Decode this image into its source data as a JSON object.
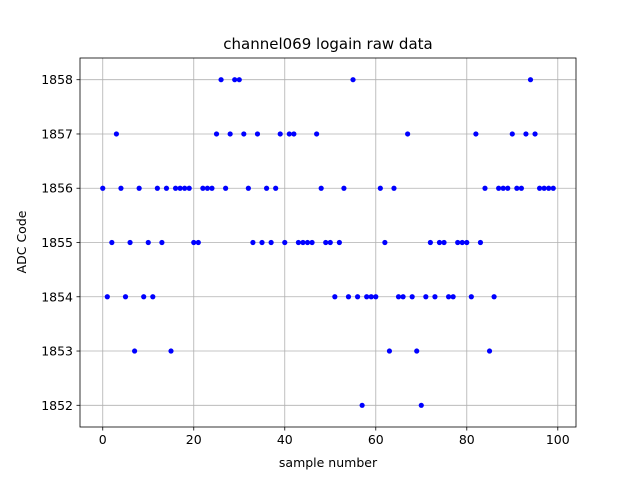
{
  "chart_data": {
    "type": "scatter",
    "title": "channel069 logain raw data",
    "xlabel": "sample number",
    "ylabel": "ADC Code",
    "xlim": [
      -5,
      104
    ],
    "ylim": [
      1851.6,
      1858.4
    ],
    "xticks": [
      0,
      20,
      40,
      60,
      80,
      100
    ],
    "yticks": [
      1852,
      1853,
      1854,
      1855,
      1856,
      1857,
      1858
    ],
    "xtick_labels": [
      "0",
      "20",
      "40",
      "60",
      "80",
      "100"
    ],
    "ytick_labels": [
      "1852",
      "1853",
      "1854",
      "1855",
      "1856",
      "1857",
      "1858"
    ],
    "grid": true,
    "marker_color": "#0000ff",
    "series": [
      {
        "x": [
          0,
          1,
          2,
          3,
          4,
          5,
          6,
          7,
          8,
          9,
          10,
          11,
          12,
          13,
          14,
          15,
          16,
          17,
          18,
          19,
          20,
          21,
          22,
          23,
          24,
          25,
          26,
          27,
          28,
          29,
          30,
          31,
          32,
          33,
          34,
          35,
          36,
          37,
          38,
          39,
          40,
          41,
          42,
          43,
          44,
          45,
          46,
          47,
          48,
          49,
          50,
          51,
          52,
          53,
          54,
          55,
          56,
          57,
          58,
          59,
          60,
          61,
          62,
          63,
          64,
          65,
          66,
          67,
          68,
          69,
          70,
          71,
          72,
          73,
          74,
          75,
          76,
          77,
          78,
          79,
          80,
          81,
          82,
          83,
          84,
          85,
          86,
          87,
          88,
          89,
          90,
          91,
          92,
          93,
          94,
          95,
          96,
          97,
          98,
          99
        ],
        "y": [
          1856,
          1854,
          1855,
          1857,
          1856,
          1854,
          1855,
          1853,
          1856,
          1854,
          1855,
          1854,
          1856,
          1855,
          1856,
          1853,
          1856,
          1856,
          1856,
          1856,
          1855,
          1855,
          1856,
          1856,
          1856,
          1857,
          1858,
          1856,
          1857,
          1858,
          1858,
          1857,
          1856,
          1855,
          1857,
          1855,
          1856,
          1855,
          1856,
          1857,
          1855,
          1857,
          1857,
          1855,
          1855,
          1855,
          1855,
          1857,
          1856,
          1855,
          1855,
          1854,
          1855,
          1856,
          1854,
          1858,
          1854,
          1852,
          1854,
          1854,
          1854,
          1856,
          1855,
          1853,
          1856,
          1854,
          1854,
          1857,
          1854,
          1853,
          1852,
          1854,
          1855,
          1854,
          1855,
          1855,
          1854,
          1854,
          1855,
          1855,
          1855,
          1854,
          1857,
          1855,
          1856,
          1853,
          1854,
          1856,
          1856,
          1856,
          1857,
          1856,
          1856,
          1857,
          1858,
          1857,
          1856,
          1856,
          1856,
          1856
        ]
      }
    ]
  }
}
